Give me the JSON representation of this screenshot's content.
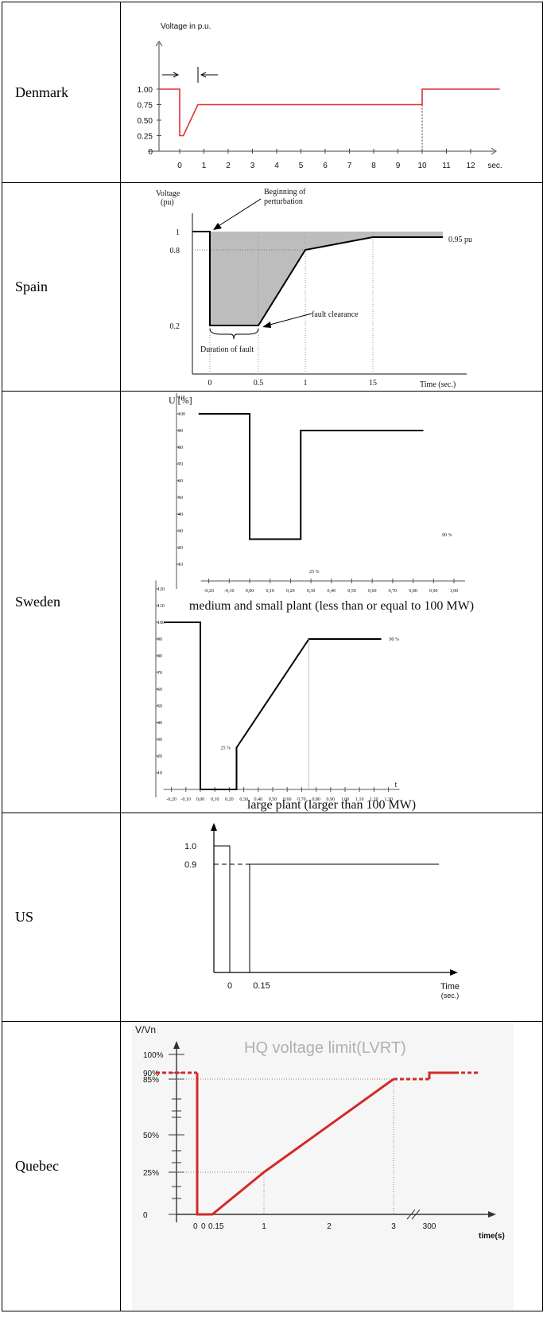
{
  "rows": [
    {
      "country": "Denmark"
    },
    {
      "country": "Spain"
    },
    {
      "country": "Sweden"
    },
    {
      "country": "US"
    },
    {
      "country": "Quebec"
    }
  ],
  "chart_data": [
    {
      "country": "Denmark",
      "type": "line",
      "title": "",
      "ylabel": "Voltage in p.u.",
      "xlabel": "",
      "x_unit": "sec.",
      "x_ticks": [
        0,
        1,
        2,
        3,
        4,
        5,
        6,
        7,
        8,
        9,
        10,
        11,
        12
      ],
      "x_ticks_labels": [
        "0",
        "1",
        "2",
        "3",
        "4",
        "5",
        "6",
        "7",
        "8",
        "9",
        "10",
        "11",
        "12",
        "sec."
      ],
      "y_ticks_labels": [
        "0",
        "0.25",
        "0.50",
        "0.75",
        "1.00"
      ],
      "y_ticks": [
        0,
        0.25,
        0.5,
        0.75,
        1.0
      ],
      "xlim": [
        -0.8,
        13.2
      ],
      "ylim": [
        0,
        1.12
      ],
      "series": [
        {
          "color": "#e03030",
          "points": [
            [
              -0.8,
              1.0
            ],
            [
              0,
              1.0
            ],
            [
              0,
              0.25
            ],
            [
              0.15,
              0.25
            ],
            [
              0.75,
              0.75
            ],
            [
              10,
              0.75
            ],
            [
              10,
              1.0
            ],
            [
              13.2,
              1.0
            ]
          ]
        }
      ]
    },
    {
      "country": "Spain",
      "type": "area",
      "ylabel": "Voltage (pu)",
      "xlabel": "Time (sec.)",
      "x_ticks_labels": [
        "0",
        "0.5",
        "1",
        "15"
      ],
      "x_ticks": [
        0,
        0.5,
        1,
        15
      ],
      "y_ticks_labels": [
        "0.2",
        "0.8",
        "1"
      ],
      "y_ticks": [
        0.2,
        0.8,
        1.0
      ],
      "annotations": [
        "Beginning of perturbation",
        "fault clearance",
        "Duration of fault",
        "0.95 pu"
      ],
      "series": [
        {
          "points": [
            [
              -0.2,
              1.0
            ],
            [
              0,
              1.0
            ],
            [
              0,
              0.2
            ],
            [
              0.5,
              0.2
            ],
            [
              1,
              0.8
            ],
            [
              15,
              0.95
            ],
            [
              20,
              0.95
            ]
          ]
        }
      ]
    },
    {
      "country": "Sweden",
      "subtitle": "medium and small plant (less than or equal to 100 MW)",
      "type": "line",
      "ylabel": "U [%]",
      "x_ticks_labels": [
        "-0,20",
        "-0,10",
        "0,00",
        "0,10",
        "0,20",
        "0,30",
        "0,40",
        "0,50",
        "0,60",
        "0,70",
        "0,80",
        "0,90",
        "1,00"
      ],
      "x_ticks": [
        -0.2,
        -0.1,
        0,
        0.1,
        0.2,
        0.3,
        0.4,
        0.5,
        0.6,
        0.7,
        0.8,
        0.9,
        1.0
      ],
      "y_ticks_labels": [
        "10",
        "20",
        "30",
        "40",
        "50",
        "60",
        "70",
        "80",
        "90",
        "100",
        "110",
        "120"
      ],
      "y_ticks": [
        10,
        20,
        30,
        40,
        50,
        60,
        70,
        80,
        90,
        100,
        110,
        120
      ],
      "annotations": [
        "25 %",
        "90 %"
      ],
      "series": [
        {
          "points": [
            [
              -0.25,
              100
            ],
            [
              0,
              100
            ],
            [
              0,
              25
            ],
            [
              0.25,
              25
            ],
            [
              0.25,
              90
            ],
            [
              0.85,
              90
            ]
          ]
        }
      ]
    },
    {
      "country": "Sweden",
      "subtitle": "large plant (larger than 100 MW)",
      "type": "line",
      "xlabel": "t",
      "x_ticks_labels": [
        "-0,20",
        "-0,10",
        "0,00",
        "0,10",
        "0,20",
        "0,30",
        "0,40",
        "0,50",
        "0,60",
        "0,70",
        "0,80",
        "0,90",
        "1,00",
        "1,10",
        "1,20",
        "1,30"
      ],
      "x_ticks": [
        -0.2,
        -0.1,
        0,
        0.1,
        0.2,
        0.3,
        0.4,
        0.5,
        0.6,
        0.7,
        0.8,
        0.9,
        1.0,
        1.1,
        1.2,
        1.3
      ],
      "y_ticks_labels": [
        "10",
        "20",
        "30",
        "40",
        "50",
        "60",
        "70",
        "80",
        "90",
        "100",
        "110",
        "120"
      ],
      "y_ticks": [
        10,
        20,
        30,
        40,
        50,
        60,
        70,
        80,
        90,
        100,
        110,
        120
      ],
      "annotations": [
        "25 %",
        "90 %"
      ],
      "series": [
        {
          "points": [
            [
              -0.25,
              100
            ],
            [
              0,
              100
            ],
            [
              0,
              0
            ],
            [
              0.25,
              0
            ],
            [
              0.25,
              25
            ],
            [
              0.75,
              90
            ],
            [
              1.25,
              90
            ]
          ]
        }
      ]
    },
    {
      "country": "US",
      "type": "line",
      "xlabel": "Time (sec.)",
      "x_ticks_labels": [
        "0",
        "0.15"
      ],
      "x_ticks": [
        0,
        0.15
      ],
      "y_ticks_labels": [
        "1.0",
        "0.9"
      ],
      "y_ticks": [
        1.0,
        0.9
      ],
      "series": [
        {
          "points": [
            [
              -0.1,
              1.0
            ],
            [
              0,
              1.0
            ],
            [
              0,
              0
            ],
            [
              0.15,
              0
            ],
            [
              0.15,
              0.9
            ],
            [
              1.5,
              0.9
            ]
          ]
        }
      ]
    },
    {
      "country": "Quebec",
      "type": "line",
      "title": "HQ voltage limit(LVRT)",
      "ylabel": "V/Vn",
      "xlabel": "time(s)",
      "x_ticks_labels": [
        "0",
        "0.15",
        "1",
        "2",
        "3",
        "300"
      ],
      "x_ticks": [
        0,
        0.15,
        1,
        2,
        3,
        300
      ],
      "y_ticks_labels": [
        "0",
        "25%",
        "50%",
        "85%",
        "90%",
        "100%"
      ],
      "y_ticks": [
        0,
        0.25,
        0.5,
        0.85,
        0.9,
        1.0
      ],
      "color": "#d42a2a",
      "series": [
        {
          "points": [
            [
              -0.3,
              0.9
            ],
            [
              0,
              0.9
            ],
            [
              0,
              0
            ],
            [
              0.15,
              0
            ],
            [
              1,
              0.25
            ],
            [
              3,
              0.85
            ],
            [
              300,
              0.85
            ],
            [
              300,
              0.9
            ]
          ]
        }
      ]
    }
  ]
}
